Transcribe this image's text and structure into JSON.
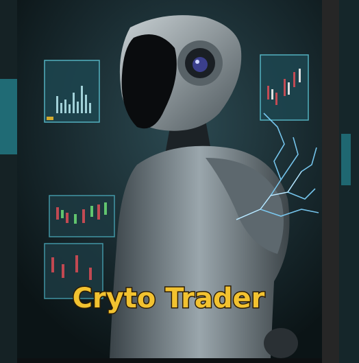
{
  "title": "Cryto Trader"
}
